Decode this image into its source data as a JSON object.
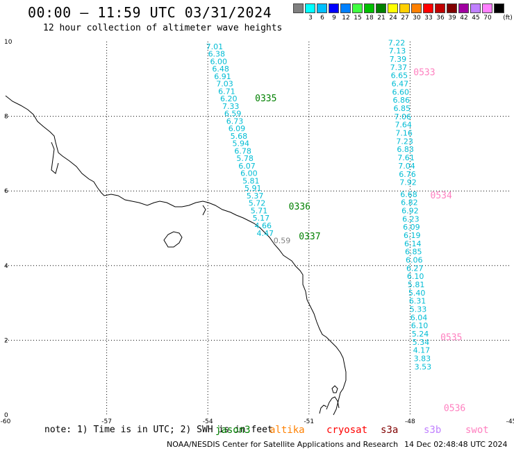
{
  "header": {
    "title": "00:00 – 11:59 UTC 03/31/2024",
    "subtitle": "12 hour collection of altimeter wave heights"
  },
  "colorbar": {
    "unit": "(ft)",
    "swatches": [
      {
        "label": "",
        "color": "#808080"
      },
      {
        "label": "3",
        "color": "#00ffff"
      },
      {
        "label": "6",
        "color": "#00bfff"
      },
      {
        "label": "9",
        "color": "#0000ff"
      },
      {
        "label": "12",
        "color": "#0080ff"
      },
      {
        "label": "15",
        "color": "#40ff40"
      },
      {
        "label": "18",
        "color": "#00c000"
      },
      {
        "label": "21",
        "color": "#008000"
      },
      {
        "label": "24",
        "color": "#ffff00"
      },
      {
        "label": "27",
        "color": "#ffd000"
      },
      {
        "label": "30",
        "color": "#ff8000"
      },
      {
        "label": "33",
        "color": "#ff0000"
      },
      {
        "label": "36",
        "color": "#c00000"
      },
      {
        "label": "39",
        "color": "#800000"
      },
      {
        "label": "42",
        "color": "#a000a0"
      },
      {
        "label": "45",
        "color": "#c080ff"
      },
      {
        "label": "70",
        "color": "#ff80ff"
      },
      {
        "label": "",
        "color": "#000000"
      }
    ]
  },
  "axes": {
    "x_ticks": [
      "-60",
      "-57",
      "-54",
      "-51",
      "-48",
      "-45"
    ],
    "y_ticks": [
      "0",
      "2",
      "4",
      "6",
      "8",
      "10"
    ],
    "lon_range": [
      -60,
      -45
    ],
    "lat_range": [
      0,
      10
    ]
  },
  "chart_data": {
    "type": "scatter",
    "tracks": [
      {
        "color": "#00bcd4",
        "points": [
          {
            "lon": -53.8,
            "lat": 9.8,
            "value": "7.01"
          },
          {
            "lon": -53.74,
            "lat": 9.6,
            "value": "6.38"
          },
          {
            "lon": -53.68,
            "lat": 9.4,
            "value": "6.00"
          },
          {
            "lon": -53.62,
            "lat": 9.2,
            "value": "6.48"
          },
          {
            "lon": -53.56,
            "lat": 9.0,
            "value": "6.91"
          },
          {
            "lon": -53.5,
            "lat": 8.8,
            "value": "7.03"
          },
          {
            "lon": -53.44,
            "lat": 8.6,
            "value": "6.71"
          },
          {
            "lon": -53.38,
            "lat": 8.4,
            "value": "6.20"
          },
          {
            "lon": -53.32,
            "lat": 8.2,
            "value": "7.33"
          },
          {
            "lon": -53.26,
            "lat": 8.0,
            "value": "6.59"
          },
          {
            "lon": -53.2,
            "lat": 7.8,
            "value": "6.73"
          },
          {
            "lon": -53.14,
            "lat": 7.6,
            "value": "6.09"
          },
          {
            "lon": -53.08,
            "lat": 7.4,
            "value": "5.68"
          },
          {
            "lon": -53.02,
            "lat": 7.2,
            "value": "5.94"
          },
          {
            "lon": -52.96,
            "lat": 7.0,
            "value": "6.78"
          },
          {
            "lon": -52.9,
            "lat": 6.8,
            "value": "5.78"
          },
          {
            "lon": -52.84,
            "lat": 6.6,
            "value": "6.07"
          },
          {
            "lon": -52.78,
            "lat": 6.4,
            "value": "6.00"
          },
          {
            "lon": -52.72,
            "lat": 6.2,
            "value": "5.81"
          },
          {
            "lon": -52.66,
            "lat": 6.0,
            "value": "5.91"
          },
          {
            "lon": -52.6,
            "lat": 5.8,
            "value": "5.37"
          },
          {
            "lon": -52.54,
            "lat": 5.6,
            "value": "5.72"
          },
          {
            "lon": -52.48,
            "lat": 5.4,
            "value": "5.71"
          },
          {
            "lon": -52.42,
            "lat": 5.2,
            "value": "5.17"
          },
          {
            "lon": -52.36,
            "lat": 5.0,
            "value": "4.66"
          },
          {
            "lon": -52.3,
            "lat": 4.8,
            "value": "4.47"
          }
        ]
      },
      {
        "color": "#808080",
        "points": [
          {
            "lon": -51.8,
            "lat": 4.6,
            "value": "0.59"
          }
        ]
      },
      {
        "color": "#00bcd4",
        "points": [
          {
            "lon": -48.4,
            "lat": 9.9,
            "value": "7.22"
          },
          {
            "lon": -48.38,
            "lat": 9.68,
            "value": "7.13"
          },
          {
            "lon": -48.36,
            "lat": 9.46,
            "value": "7.39"
          },
          {
            "lon": -48.34,
            "lat": 9.24,
            "value": "7.37"
          },
          {
            "lon": -48.32,
            "lat": 9.02,
            "value": "6.65"
          },
          {
            "lon": -48.3,
            "lat": 8.8,
            "value": "6.47"
          },
          {
            "lon": -48.28,
            "lat": 8.58,
            "value": "6.60"
          },
          {
            "lon": -48.26,
            "lat": 8.36,
            "value": "6.86"
          },
          {
            "lon": -48.24,
            "lat": 8.14,
            "value": "6.85"
          },
          {
            "lon": -48.22,
            "lat": 7.92,
            "value": "7.06"
          },
          {
            "lon": -48.2,
            "lat": 7.7,
            "value": "7.64"
          },
          {
            "lon": -48.18,
            "lat": 7.48,
            "value": "7.16"
          },
          {
            "lon": -48.16,
            "lat": 7.26,
            "value": "7.23"
          },
          {
            "lon": -48.14,
            "lat": 7.04,
            "value": "6.83"
          },
          {
            "lon": -48.12,
            "lat": 6.82,
            "value": "7.61"
          },
          {
            "lon": -48.1,
            "lat": 6.6,
            "value": "7.04"
          },
          {
            "lon": -48.08,
            "lat": 6.38,
            "value": "6.76"
          },
          {
            "lon": -48.06,
            "lat": 6.16,
            "value": "7.92"
          },
          {
            "lon": -48.04,
            "lat": 5.84,
            "value": "6.68"
          },
          {
            "lon": -48.02,
            "lat": 5.62,
            "value": "6.82"
          },
          {
            "lon": -48.0,
            "lat": 5.4,
            "value": "6.92"
          },
          {
            "lon": -47.98,
            "lat": 5.18,
            "value": "6.23"
          },
          {
            "lon": -47.96,
            "lat": 4.96,
            "value": "6.09"
          },
          {
            "lon": -47.94,
            "lat": 4.74,
            "value": "6.19"
          },
          {
            "lon": -47.92,
            "lat": 4.52,
            "value": "6.14"
          },
          {
            "lon": -47.9,
            "lat": 4.3,
            "value": "6.85"
          },
          {
            "lon": -47.88,
            "lat": 4.08,
            "value": "6.06"
          },
          {
            "lon": -47.86,
            "lat": 3.86,
            "value": "6.27"
          },
          {
            "lon": -47.84,
            "lat": 3.64,
            "value": "6.10"
          },
          {
            "lon": -47.82,
            "lat": 3.42,
            "value": "5.81"
          },
          {
            "lon": -47.8,
            "lat": 3.2,
            "value": "5.40"
          },
          {
            "lon": -47.78,
            "lat": 2.98,
            "value": "6.31"
          },
          {
            "lon": -47.76,
            "lat": 2.76,
            "value": "5.33"
          },
          {
            "lon": -47.74,
            "lat": 2.54,
            "value": "6.04"
          },
          {
            "lon": -47.72,
            "lat": 2.32,
            "value": "6.10"
          },
          {
            "lon": -47.7,
            "lat": 2.1,
            "value": "5.24"
          },
          {
            "lon": -47.68,
            "lat": 1.88,
            "value": "5.34"
          },
          {
            "lon": -47.66,
            "lat": 1.66,
            "value": "4.17"
          },
          {
            "lon": -47.64,
            "lat": 1.44,
            "value": "3.83"
          },
          {
            "lon": -47.62,
            "lat": 1.22,
            "value": "3.53"
          }
        ]
      }
    ],
    "pass_labels": [
      {
        "text": "0335",
        "color": "#008000",
        "lon": -52.6,
        "lat": 8.4
      },
      {
        "text": "0336",
        "color": "#008000",
        "lon": -51.6,
        "lat": 5.5
      },
      {
        "text": "0337",
        "color": "#008000",
        "lon": -51.3,
        "lat": 4.7
      },
      {
        "text": "0533",
        "color": "#ff80c0",
        "lon": -47.9,
        "lat": 9.1
      },
      {
        "text": "0534",
        "color": "#ff80c0",
        "lon": -47.4,
        "lat": 5.8
      },
      {
        "text": "0535",
        "color": "#ff80c0",
        "lon": -47.1,
        "lat": 2.0
      },
      {
        "text": "0536",
        "color": "#ff80c0",
        "lon": -47.0,
        "lat": 0.1
      }
    ]
  },
  "footer": {
    "note": "note: 1) Time is in UTC; 2) SWH is in feet",
    "satellites": [
      {
        "name": "jason3",
        "color": "#008000"
      },
      {
        "name": "altika",
        "color": "#ff8000"
      },
      {
        "name": "cryosat",
        "color": "#ff0000"
      },
      {
        "name": "s3a",
        "color": "#800000"
      },
      {
        "name": "s3b",
        "color": "#c080ff"
      },
      {
        "name": "swot",
        "color": "#ff80c0"
      }
    ],
    "credit": "NOAA/NESDIS Center for Satellite Applications and Research",
    "timestamp": "14 Dec 02:48:48 UTC 2024"
  }
}
